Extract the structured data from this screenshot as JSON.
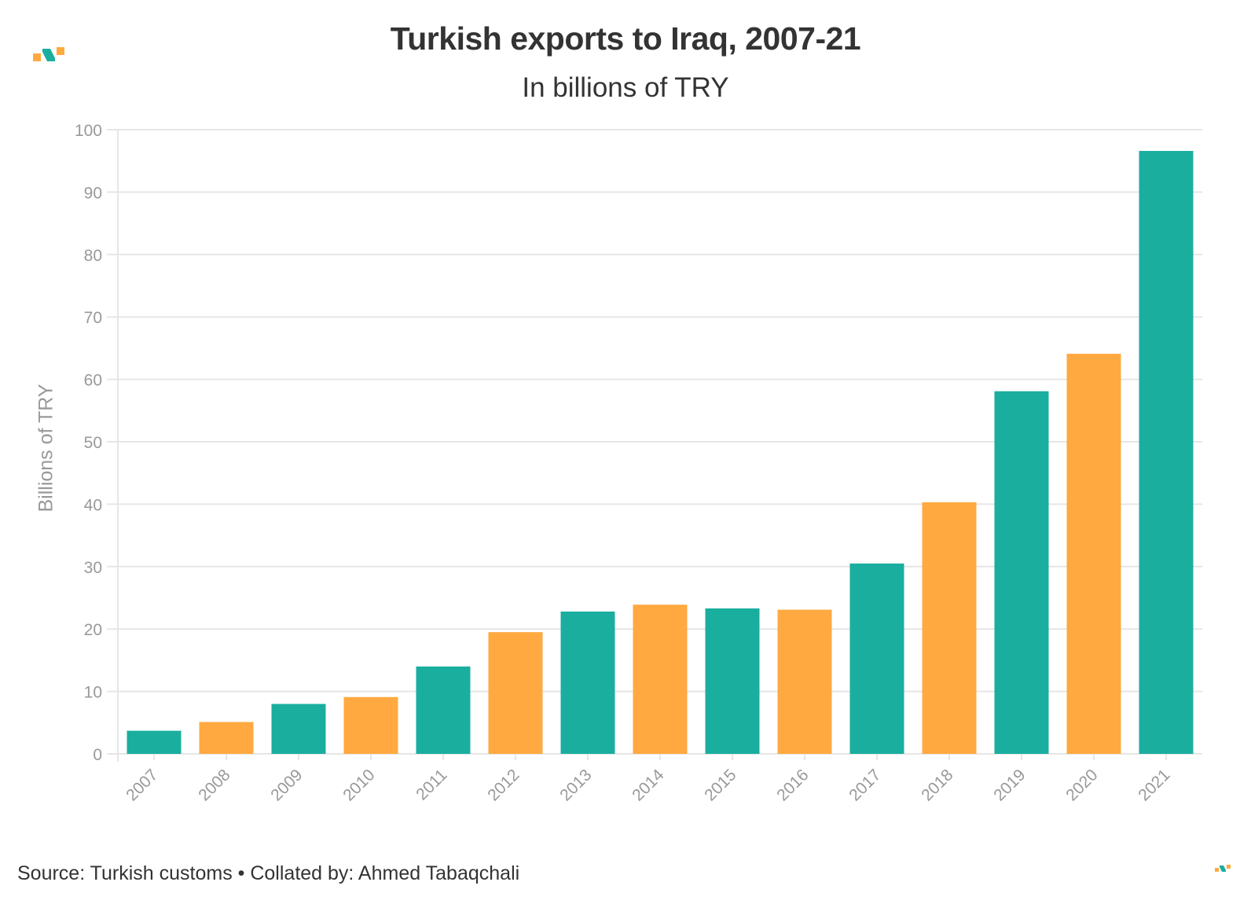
{
  "title": "Turkish exports to Iraq, 2007-21",
  "subtitle": "In billions of TRY",
  "footer": "Source: Turkish customs • Collated by: Ahmed Tabaqchali",
  "colors": {
    "teal": "#1aae9f",
    "orange": "#ffa940",
    "grid": "#e6e6e6",
    "axis_text": "#999999",
    "title_text": "#333333"
  },
  "icons": {
    "brand_logo": "brand-logo-icon"
  },
  "chart_data": {
    "type": "bar",
    "title": "Turkish exports to Iraq, 2007-21",
    "subtitle": "In billions of TRY",
    "xlabel": "",
    "ylabel": "Billions of TRY",
    "ylim": [
      0,
      100
    ],
    "yticks": [
      0,
      10,
      20,
      30,
      40,
      50,
      60,
      70,
      80,
      90,
      100
    ],
    "grid": true,
    "legend": "none",
    "categories": [
      "2007",
      "2008",
      "2009",
      "2010",
      "2011",
      "2012",
      "2013",
      "2014",
      "2015",
      "2016",
      "2017",
      "2018",
      "2019",
      "2020",
      "2021"
    ],
    "values": [
      3.7,
      5.1,
      8.0,
      9.1,
      14.0,
      19.5,
      22.8,
      23.9,
      23.3,
      23.1,
      30.5,
      40.3,
      58.1,
      64.1,
      96.6
    ],
    "bar_colors": [
      "#1aae9f",
      "#ffa940",
      "#1aae9f",
      "#ffa940",
      "#1aae9f",
      "#ffa940",
      "#1aae9f",
      "#ffa940",
      "#1aae9f",
      "#ffa940",
      "#1aae9f",
      "#ffa940",
      "#1aae9f",
      "#ffa940",
      "#1aae9f"
    ]
  }
}
